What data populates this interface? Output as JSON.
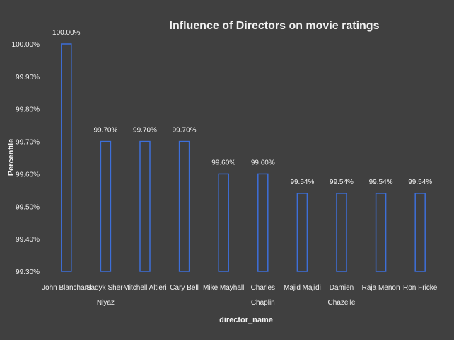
{
  "chart_data": {
    "type": "bar",
    "title": "Influence of Directors on movie ratings",
    "xlabel": "director_name",
    "ylabel": "Percentile",
    "categories": [
      [
        "John Blanchard"
      ],
      [
        "Sadyk Sher-",
        "Niyaz"
      ],
      [
        "Mitchell Altieri"
      ],
      [
        "Cary Bell"
      ],
      [
        "Mike Mayhall"
      ],
      [
        "Charles",
        "Chaplin"
      ],
      [
        "Majid Majidi"
      ],
      [
        "Damien",
        "Chazelle"
      ],
      [
        "Raja Menon"
      ],
      [
        "Ron Fricke"
      ]
    ],
    "values": [
      100.0,
      99.7,
      99.7,
      99.7,
      99.6,
      99.6,
      99.54,
      99.54,
      99.54,
      99.54
    ],
    "data_labels": [
      "100.00%",
      "99.70%",
      "99.70%",
      "99.70%",
      "99.60%",
      "99.60%",
      "99.54%",
      "99.54%",
      "99.54%",
      "99.54%"
    ],
    "ylim": [
      99.3,
      100.0
    ],
    "y_ticks": [
      "99.30%",
      "99.40%",
      "99.50%",
      "99.60%",
      "99.70%",
      "99.80%",
      "99.90%",
      "100.00%"
    ],
    "grid": false,
    "legend": "none",
    "colors": {
      "background": "#404040",
      "bar_fill": "#3f3f3f",
      "bar_stroke": "#3d6fd9",
      "text": "#f2f2f2"
    }
  }
}
